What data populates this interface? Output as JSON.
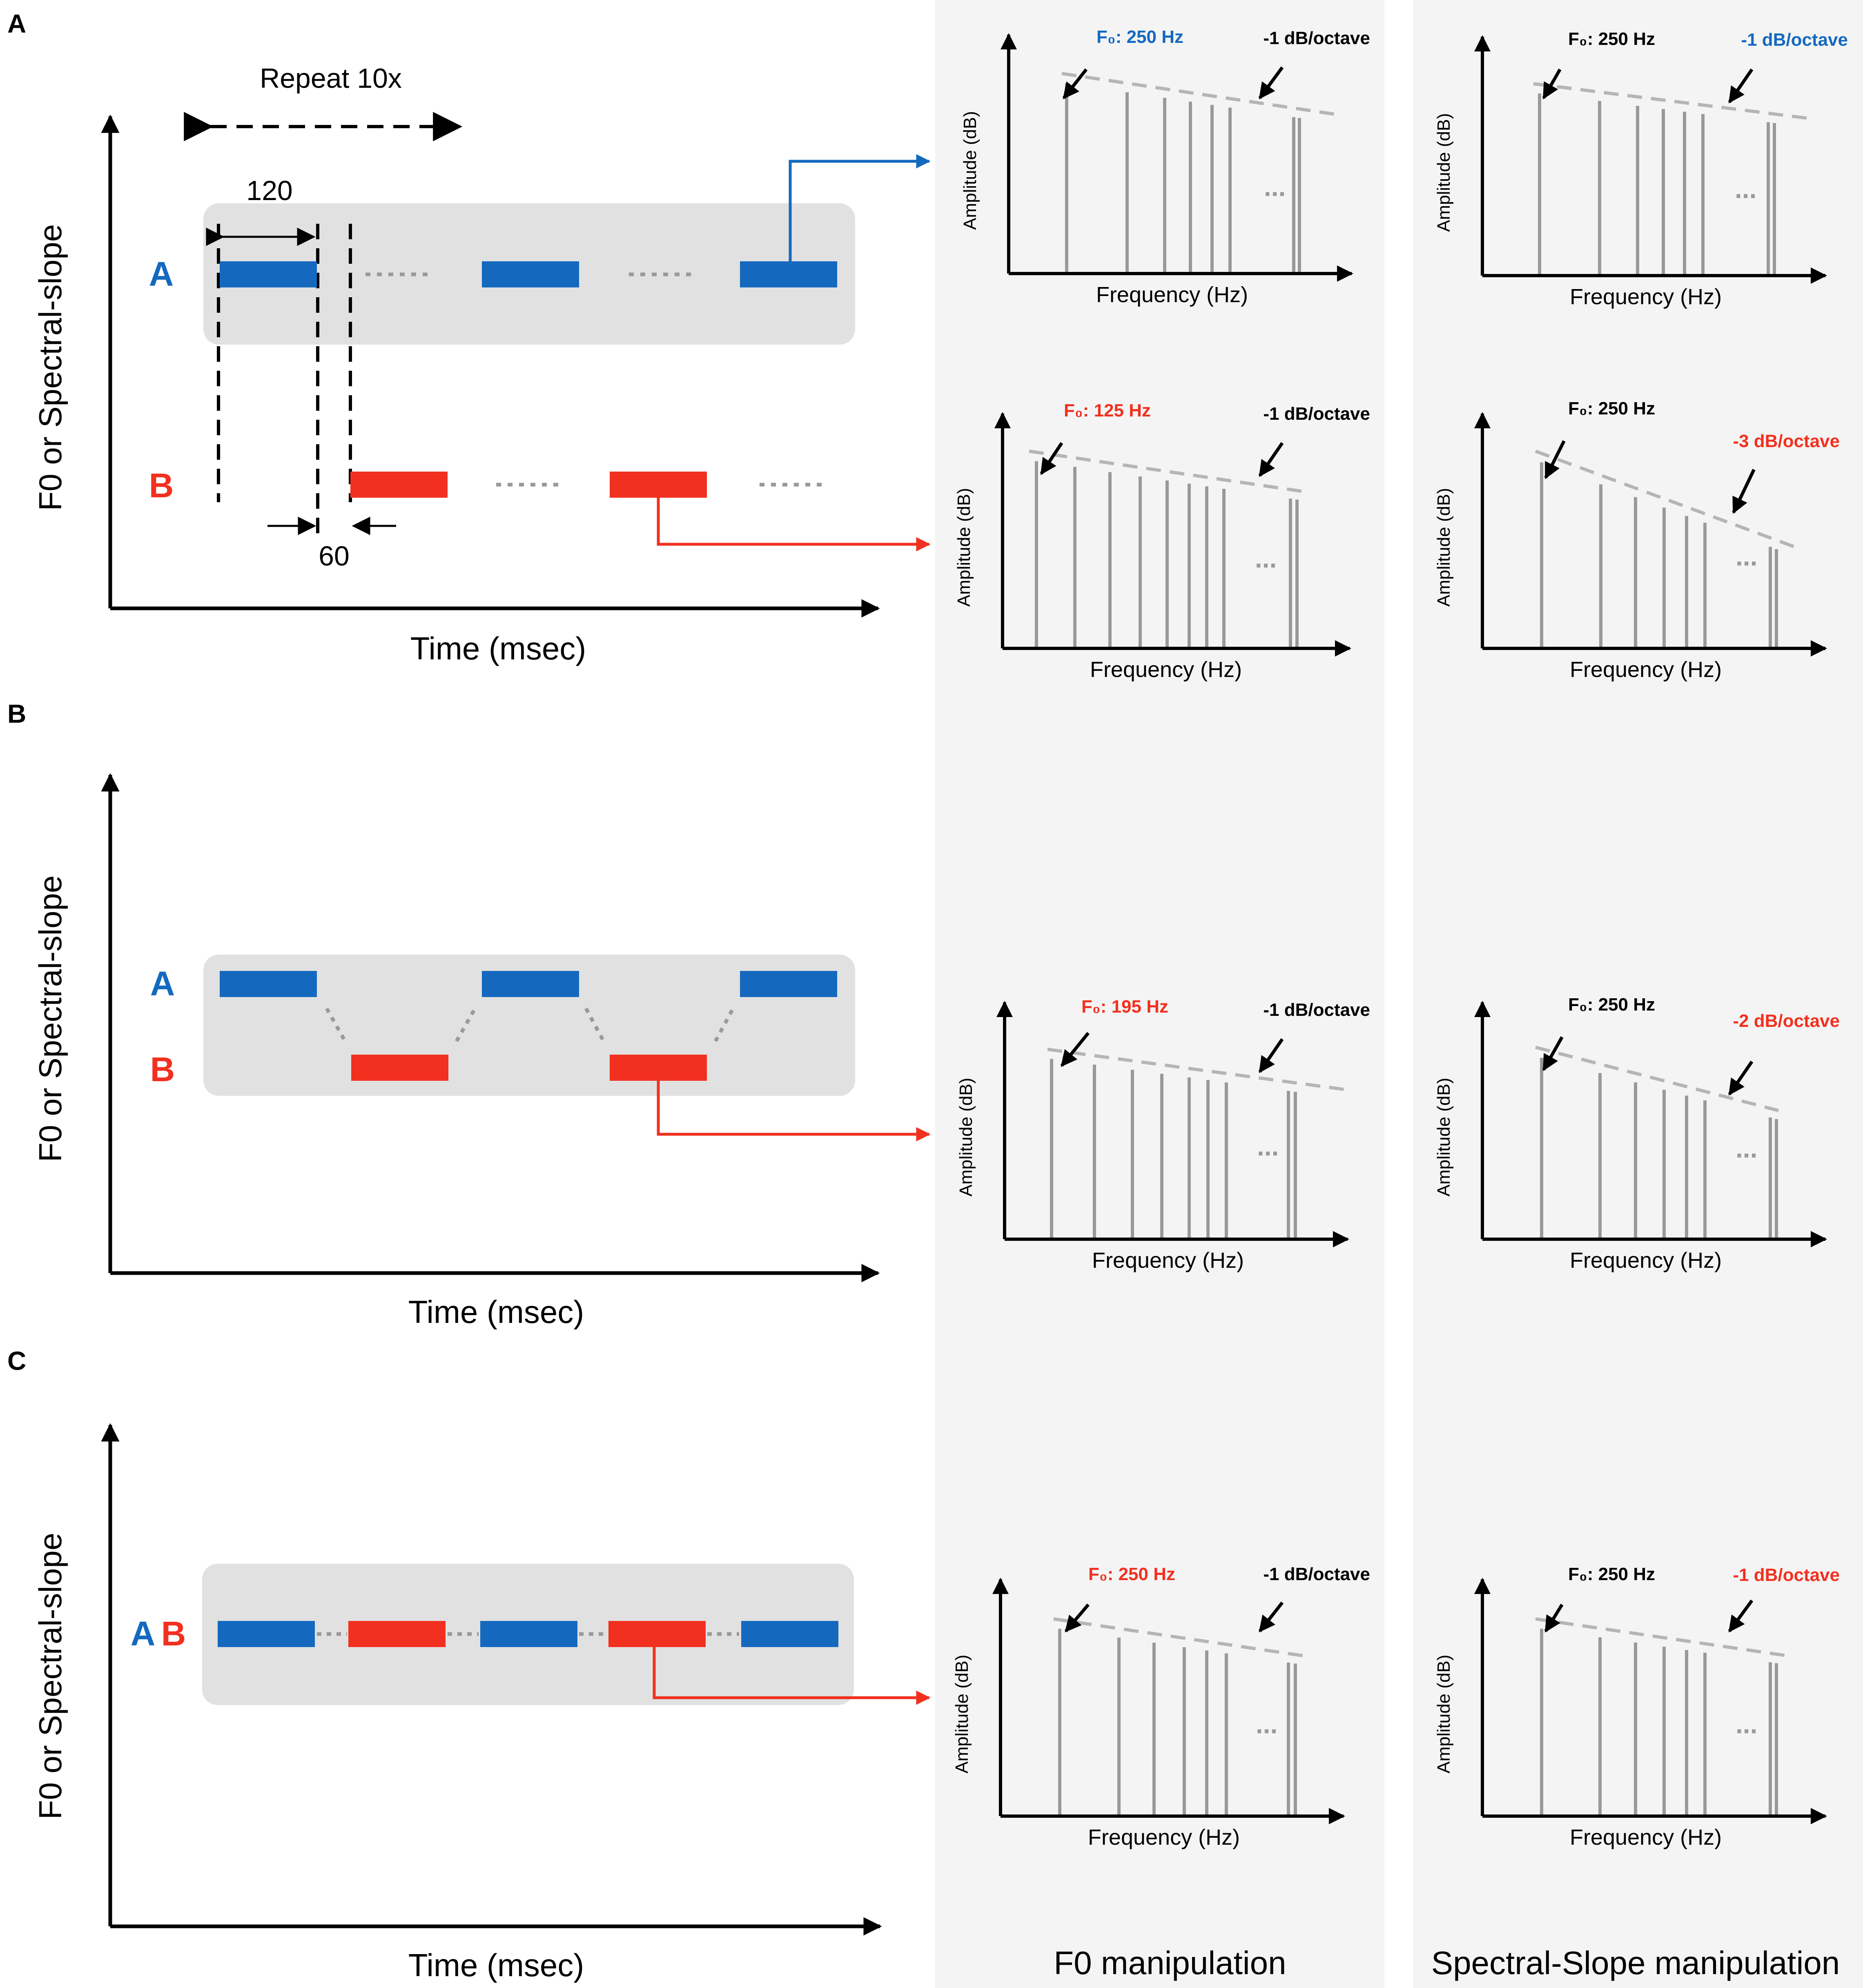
{
  "colors": {
    "blue": "#1469bf",
    "red": "#f2301f",
    "gray_box": "#e1e1e1",
    "column_bg": "#f4f4f4",
    "stem": "#999999",
    "envelope": "#b5b5b5",
    "black": "#000000"
  },
  "panels": {
    "A": {
      "letter": "A",
      "y_axis_label": "F0 or Spectral-slope",
      "x_axis_label": "Time (msec)"
    },
    "B": {
      "letter": "B",
      "y_axis_label": "F0 or Spectral-slope",
      "x_axis_label": "Time (msec)"
    },
    "C": {
      "letter": "C",
      "y_axis_label": "F0 or Spectral-slope",
      "x_axis_label": "Time (msec)"
    }
  },
  "stream_labels": {
    "A": "A",
    "B": "B"
  },
  "annotations": {
    "repeat": "Repeat 10x",
    "duration": "120",
    "gap": "60"
  },
  "columns": {
    "f0_title": "F0 manipulation",
    "slope_title": "Spectral-Slope manipulation"
  },
  "spectra": {
    "y_axis_label": "Amplitude (dB)",
    "x_axis_label": "Frequency (Hz)",
    "ellipsis": "...",
    "items": [
      {
        "id": "a-f0-1",
        "f0_label": "F₀: 250 Hz",
        "f0_color": "blue",
        "slope_label": "-1 dB/octave",
        "slope_color": "black"
      },
      {
        "id": "a-slope-1",
        "f0_label": "F₀: 250 Hz",
        "f0_color": "black",
        "slope_label": "-1 dB/octave",
        "slope_color": "blue"
      },
      {
        "id": "a-f0-2",
        "f0_label": "F₀: 125 Hz",
        "f0_color": "red",
        "slope_label": "-1 dB/octave",
        "slope_color": "black"
      },
      {
        "id": "a-slope-2",
        "f0_label": "F₀: 250 Hz",
        "f0_color": "black",
        "slope_label": "-3 dB/octave",
        "slope_color": "red"
      },
      {
        "id": "b-f0",
        "f0_label": "F₀: 195 Hz",
        "f0_color": "red",
        "slope_label": "-1 dB/octave",
        "slope_color": "black"
      },
      {
        "id": "b-slope",
        "f0_label": "F₀: 250 Hz",
        "f0_color": "black",
        "slope_label": "-2 dB/octave",
        "slope_color": "red"
      },
      {
        "id": "c-f0",
        "f0_label": "F₀: 250 Hz",
        "f0_color": "red",
        "slope_label": "-1 dB/octave",
        "slope_color": "black"
      },
      {
        "id": "c-slope",
        "f0_label": "F₀: 250 Hz",
        "f0_color": "black",
        "slope_label": "-1 dB/octave",
        "slope_color": "red"
      }
    ]
  }
}
